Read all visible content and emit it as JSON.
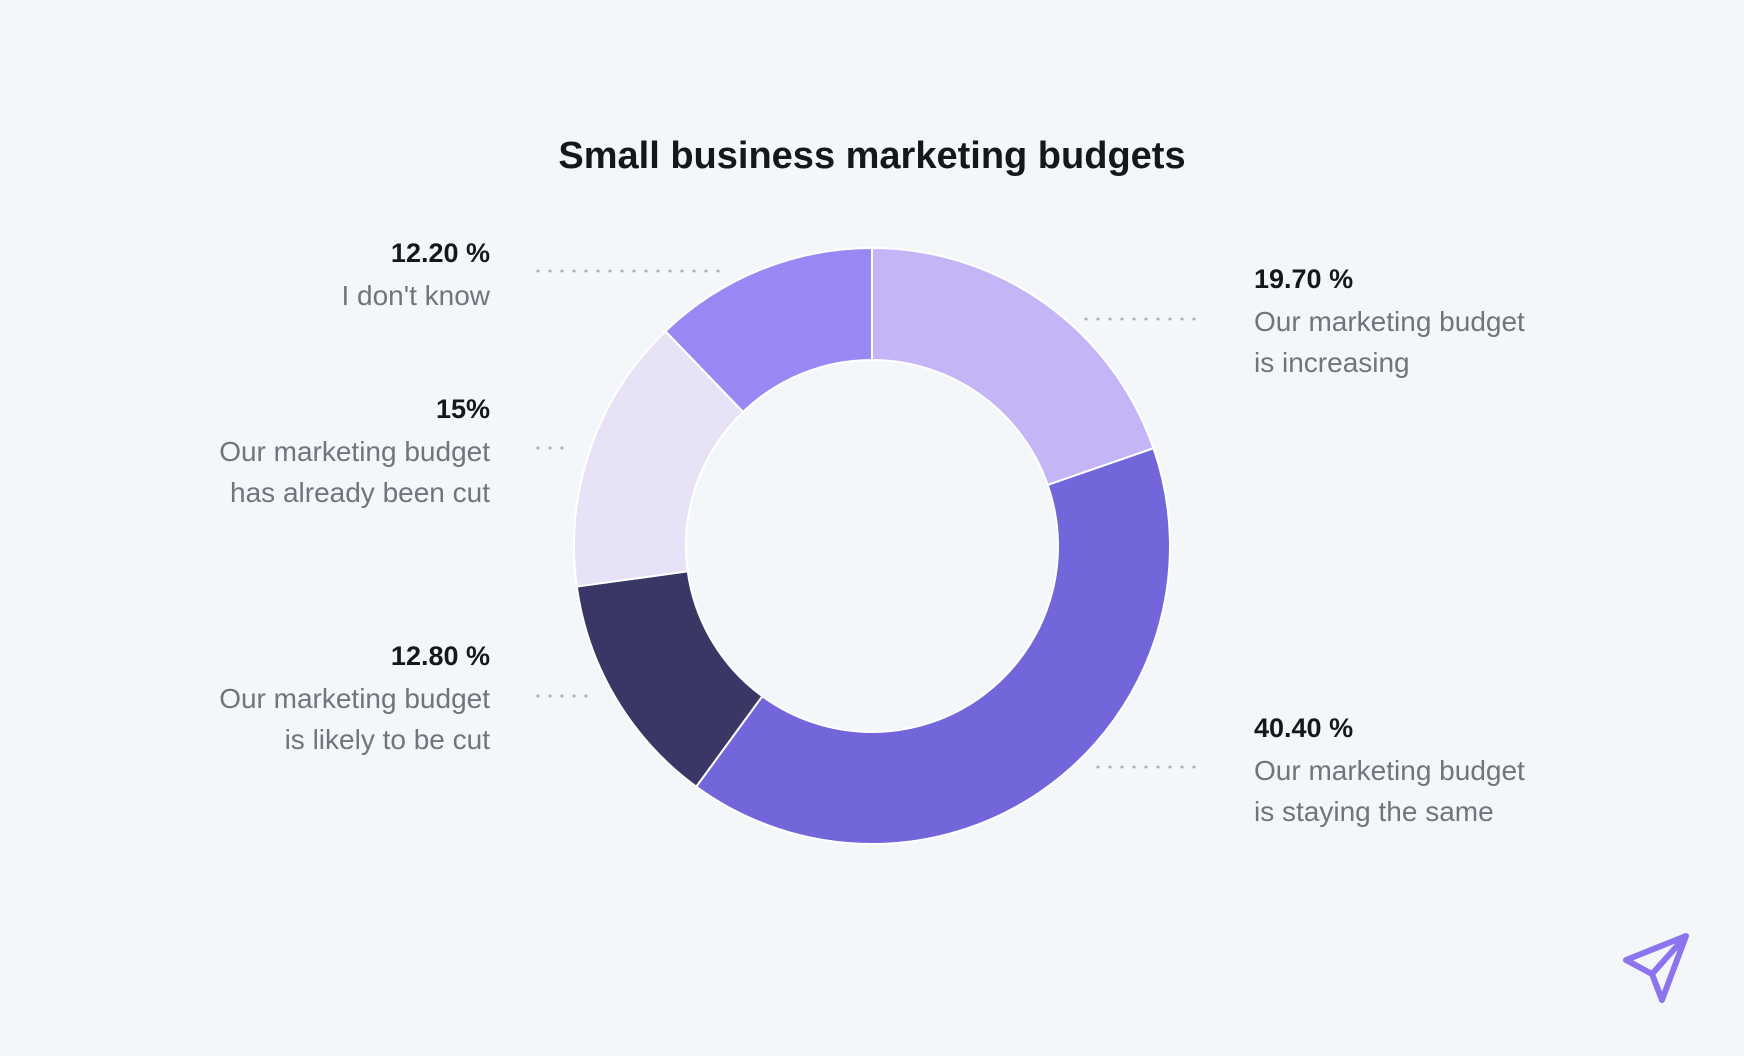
{
  "chart_data": {
    "type": "pie",
    "title": "Small business marketing budgets",
    "slices": [
      {
        "label": "Our marketing budget is increasing",
        "label_lines": [
          "Our marketing budget",
          "is increasing"
        ],
        "display_value": "19.70 %",
        "value": 19.7,
        "color": "#c4b5f7"
      },
      {
        "label": "Our marketing budget is staying the same",
        "label_lines": [
          "Our marketing budget",
          "is staying the same"
        ],
        "display_value": "40.40 %",
        "value": 40.4,
        "color": "#7267da"
      },
      {
        "label": "Our marketing budget is likely to be cut",
        "label_lines": [
          "Our marketing budget",
          "is likely to be cut"
        ],
        "display_value": "12.80 %",
        "value": 12.8,
        "color": "#393766"
      },
      {
        "label": "Our marketing budget has already been cut",
        "label_lines": [
          "Our marketing budget",
          "has already been cut"
        ],
        "display_value": "15%",
        "value": 15,
        "color": "#e7e2f6"
      },
      {
        "label": "I don't know",
        "label_lines": [
          "I don't know"
        ],
        "display_value": "12.20 %",
        "value": 12.2,
        "color": "#9888f4"
      }
    ],
    "legend": "none"
  },
  "brand": {
    "icon": "send-arrow-icon",
    "color": "#8b74ee"
  },
  "colors": {
    "background": "#f4f7fa",
    "title": "#15171c",
    "label": "#6f757d",
    "leader": "#a8aeb6"
  }
}
